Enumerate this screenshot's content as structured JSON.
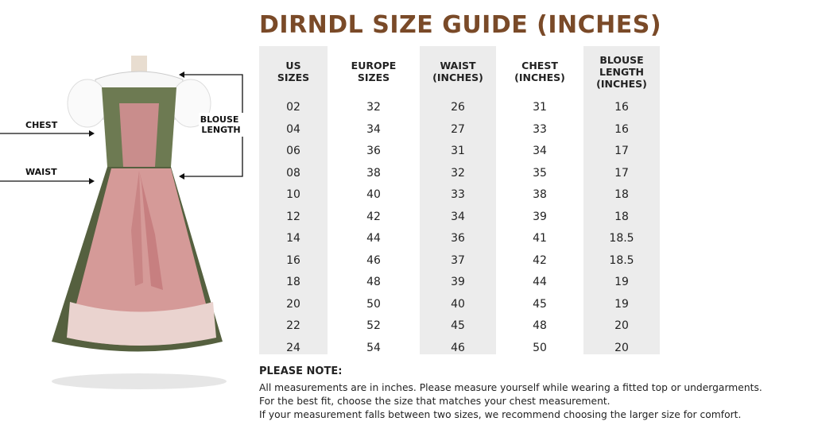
{
  "title": "DIRNDL SIZE GUIDE (INCHES)",
  "figure": {
    "chest": "CHEST",
    "waist": "WAIST",
    "blouse_length": "BLOUSE LENGTH"
  },
  "table": {
    "headers": [
      "US SIZES",
      "EUROPE SIZES",
      "WAIST (INCHES)",
      "CHEST (INCHES)",
      "BLOUSE LENGTH (INCHES)"
    ],
    "rows": [
      [
        "02",
        "32",
        "26",
        "31",
        "16"
      ],
      [
        "04",
        "34",
        "27",
        "33",
        "16"
      ],
      [
        "06",
        "36",
        "31",
        "34",
        "17"
      ],
      [
        "08",
        "38",
        "32",
        "35",
        "17"
      ],
      [
        "10",
        "40",
        "33",
        "38",
        "18"
      ],
      [
        "12",
        "42",
        "34",
        "39",
        "18"
      ],
      [
        "14",
        "44",
        "36",
        "41",
        "18.5"
      ],
      [
        "16",
        "46",
        "37",
        "42",
        "18.5"
      ],
      [
        "18",
        "48",
        "39",
        "44",
        "19"
      ],
      [
        "20",
        "50",
        "40",
        "45",
        "19"
      ],
      [
        "22",
        "52",
        "45",
        "48",
        "20"
      ],
      [
        "24",
        "54",
        "46",
        "50",
        "20"
      ]
    ]
  },
  "note": {
    "heading": "PLEASE NOTE:",
    "lines": [
      "All measurements are in inches. Please measure yourself while wearing a fitted top or undergarments.",
      "For the best fit, choose the size that matches your chest measurement.",
      "If your measurement falls between two sizes, we recommend choosing the larger size for comfort."
    ]
  }
}
